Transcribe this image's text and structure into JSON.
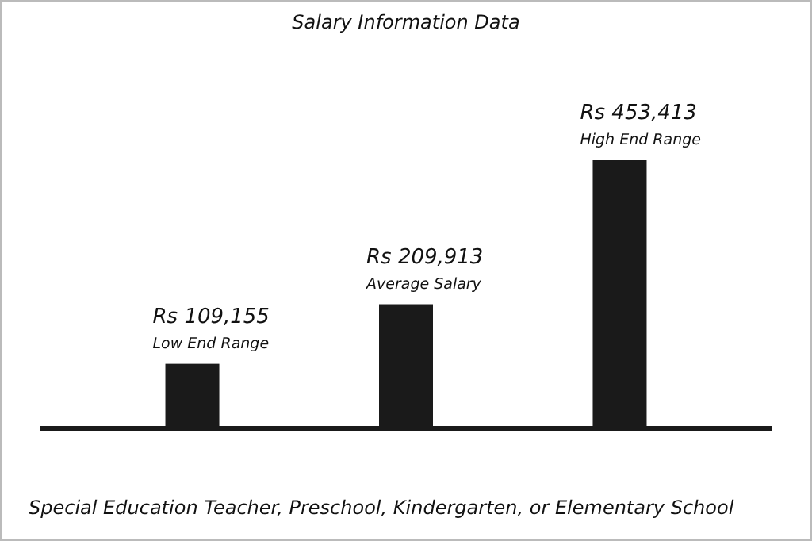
{
  "chart_data": {
    "type": "bar",
    "title": "Salary Information Data",
    "categories": [
      "Low End Range",
      "Average Salary",
      "High End Range"
    ],
    "values": [
      109155,
      209913,
      453413
    ],
    "value_labels": [
      "Rs 109,155",
      "Rs 209,913",
      "Rs 453,413"
    ],
    "color": "#1a1a1a",
    "xlabel": "Special Education Teacher, Preschool, Kindergarten, or Elementary School"
  }
}
